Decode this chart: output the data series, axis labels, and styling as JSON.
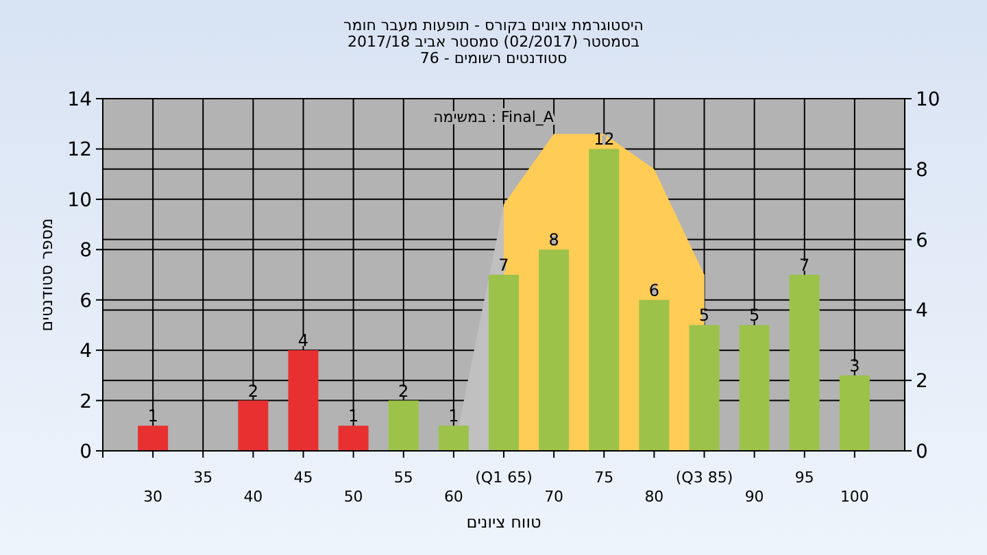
{
  "chart_data": {
    "type": "bar",
    "title": "היסטוגרמת ציונים בקורס - תופעות מעבר חומר",
    "subtitle": "בסמסטר  (02/2017)  סמסטר אביב 2017/18\nסטודנטים רשומים - 76",
    "xlabel": "טווח ציונים",
    "ylabel": "מספר סטודנטים",
    "annotations": [
      "במשימה : Final_A"
    ],
    "categories": [
      "30",
      "35",
      "40",
      "45",
      "50",
      "55",
      "60",
      "(Q1 65)",
      "70",
      "75",
      "80",
      "(Q3 85)",
      "90",
      "95",
      "100"
    ],
    "series": [
      {
        "type": "area",
        "axis": "y2",
        "color": "#c0c0c0",
        "values": [
          null,
          null,
          null,
          null,
          null,
          null,
          0,
          7,
          9,
          9,
          null,
          5,
          null,
          null,
          null
        ]
      },
      {
        "type": "area",
        "axis": "y2",
        "color": "#ffcc55",
        "values": [
          null,
          null,
          null,
          null,
          null,
          null,
          null,
          7,
          9,
          9,
          8,
          5,
          null,
          null,
          null
        ]
      },
      {
        "values": [
          1,
          0,
          2,
          4,
          1,
          2,
          1,
          7,
          8,
          12,
          6,
          5,
          5,
          7,
          3
        ],
        "colors": [
          "#e83030",
          "#e83030",
          "#e83030",
          "#e83030",
          "#e83030",
          "#9cc24a",
          "#9cc24a",
          "#9cc24a",
          "#9cc24a",
          "#9cc24a",
          "#9cc24a",
          "#9cc24a",
          "#9cc24a",
          "#9cc24a",
          "#9cc24a"
        ],
        "value_labels": [
          "1",
          null,
          "2",
          "4",
          "1",
          "2",
          "1",
          "7",
          "8",
          "12",
          "6",
          "5",
          "5",
          "7",
          "3"
        ]
      }
    ],
    "ylim": [
      0,
      14
    ],
    "yticks": [
      0,
      2,
      4,
      6,
      8,
      10,
      12,
      14
    ],
    "y2lim": [
      0,
      10
    ],
    "y2ticks": [
      0,
      2,
      4,
      6,
      8,
      10
    ],
    "grid": true
  }
}
